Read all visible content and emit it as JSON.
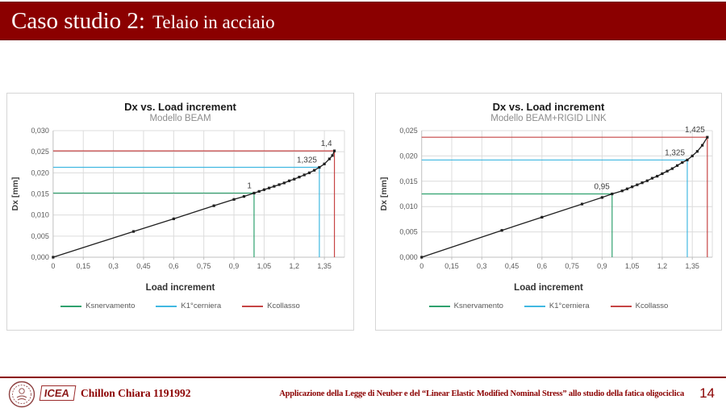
{
  "slide": {
    "title_main": "Caso studio 2:",
    "title_sub": "Telaio in acciaio",
    "accent_color": "#8B0000",
    "footer": {
      "logo_text": "ICEA",
      "author": "Chillon Chiara 1191992",
      "caption": "Applicazione della Legge di Neuber e del “Linear Elastic Modified Nominal Stress” allo studio della fatica oligociclica",
      "page_number": "14"
    }
  },
  "chart_data": [
    {
      "type": "line",
      "title": "Dx vs. Load increment",
      "subtitle": "Modello BEAM",
      "xlabel": "Load increment",
      "ylabel": "Dx [mm]",
      "xlim": [
        0,
        1.45
      ],
      "ylim": [
        0,
        0.03
      ],
      "grid": true,
      "legend_position": "bottom",
      "xticks": [
        {
          "v": 0,
          "label": "0"
        },
        {
          "v": 0.15,
          "label": "0,15"
        },
        {
          "v": 0.3,
          "label": "0,3"
        },
        {
          "v": 0.45,
          "label": "0,45"
        },
        {
          "v": 0.6,
          "label": "0,6"
        },
        {
          "v": 0.75,
          "label": "0,75"
        },
        {
          "v": 0.9,
          "label": "0,9"
        },
        {
          "v": 1.05,
          "label": "1,05"
        },
        {
          "v": 1.2,
          "label": "1,2"
        },
        {
          "v": 1.35,
          "label": "1,35"
        }
      ],
      "yticks": [
        {
          "v": 0,
          "label": "0,000"
        },
        {
          "v": 0.005,
          "label": "0,005"
        },
        {
          "v": 0.01,
          "label": "0,010"
        },
        {
          "v": 0.015,
          "label": "0,015"
        },
        {
          "v": 0.02,
          "label": "0,020"
        },
        {
          "v": 0.025,
          "label": "0,025"
        },
        {
          "v": 0.03,
          "label": "0,030"
        }
      ],
      "series": {
        "name": "Dx",
        "color": "#1f1f1f",
        "points": [
          [
            0,
            0
          ],
          [
            0.4,
            0.0061
          ],
          [
            0.6,
            0.0091
          ],
          [
            0.8,
            0.0122
          ],
          [
            0.9,
            0.0137
          ],
          [
            0.95,
            0.0144
          ],
          [
            1.0,
            0.0152
          ],
          [
            1.025,
            0.0156
          ],
          [
            1.05,
            0.016
          ],
          [
            1.075,
            0.0164
          ],
          [
            1.1,
            0.0168
          ],
          [
            1.125,
            0.0172
          ],
          [
            1.15,
            0.0176
          ],
          [
            1.175,
            0.0181
          ],
          [
            1.2,
            0.0185
          ],
          [
            1.225,
            0.019
          ],
          [
            1.25,
            0.0195
          ],
          [
            1.275,
            0.02
          ],
          [
            1.3,
            0.0206
          ],
          [
            1.325,
            0.0213
          ],
          [
            1.35,
            0.0221
          ],
          [
            1.375,
            0.0233
          ],
          [
            1.39,
            0.0241
          ],
          [
            1.4,
            0.0252
          ]
        ]
      },
      "reference_lines": [
        {
          "name": "Ksnervamento",
          "color": "#2fa16e",
          "x": 1.0,
          "y": 0.0152,
          "annotation": "1"
        },
        {
          "name": "K1°cerniera",
          "color": "#41b8e1",
          "x": 1.325,
          "y": 0.0213,
          "annotation": "1,325"
        },
        {
          "name": "Kcollasso",
          "color": "#c64444",
          "x": 1.4,
          "y": 0.0252,
          "annotation": "1,4"
        }
      ]
    },
    {
      "type": "line",
      "title": "Dx vs. Load increment",
      "subtitle": "Modello BEAM+RIGID LINK",
      "xlabel": "Load increment",
      "ylabel": "Dx [mm]",
      "xlim": [
        0,
        1.45
      ],
      "ylim": [
        0,
        0.025
      ],
      "grid": true,
      "legend_position": "bottom",
      "xticks": [
        {
          "v": 0,
          "label": "0"
        },
        {
          "v": 0.15,
          "label": "0,15"
        },
        {
          "v": 0.3,
          "label": "0,3"
        },
        {
          "v": 0.45,
          "label": "0,45"
        },
        {
          "v": 0.6,
          "label": "0,6"
        },
        {
          "v": 0.75,
          "label": "0,75"
        },
        {
          "v": 0.9,
          "label": "0,9"
        },
        {
          "v": 1.05,
          "label": "1,05"
        },
        {
          "v": 1.2,
          "label": "1,2"
        },
        {
          "v": 1.35,
          "label": "1,35"
        }
      ],
      "yticks": [
        {
          "v": 0,
          "label": "0,000"
        },
        {
          "v": 0.005,
          "label": "0,005"
        },
        {
          "v": 0.01,
          "label": "0,010"
        },
        {
          "v": 0.015,
          "label": "0,015"
        },
        {
          "v": 0.02,
          "label": "0,020"
        },
        {
          "v": 0.025,
          "label": "0,025"
        }
      ],
      "series": {
        "name": "Dx",
        "color": "#1f1f1f",
        "points": [
          [
            0,
            0
          ],
          [
            0.4,
            0.0053
          ],
          [
            0.6,
            0.0079
          ],
          [
            0.8,
            0.0105
          ],
          [
            0.9,
            0.0118
          ],
          [
            0.95,
            0.0125
          ],
          [
            1.0,
            0.0131
          ],
          [
            1.025,
            0.0135
          ],
          [
            1.05,
            0.0139
          ],
          [
            1.075,
            0.0143
          ],
          [
            1.1,
            0.0147
          ],
          [
            1.125,
            0.0151
          ],
          [
            1.15,
            0.0156
          ],
          [
            1.175,
            0.016
          ],
          [
            1.2,
            0.0165
          ],
          [
            1.225,
            0.017
          ],
          [
            1.25,
            0.0175
          ],
          [
            1.275,
            0.0181
          ],
          [
            1.3,
            0.0187
          ],
          [
            1.325,
            0.0192
          ],
          [
            1.35,
            0.02
          ],
          [
            1.375,
            0.0209
          ],
          [
            1.4,
            0.0221
          ],
          [
            1.425,
            0.0237
          ]
        ]
      },
      "reference_lines": [
        {
          "name": "Ksnervamento",
          "color": "#2fa16e",
          "x": 0.95,
          "y": 0.0125,
          "annotation": "0,95"
        },
        {
          "name": "K1°cerniera",
          "color": "#41b8e1",
          "x": 1.325,
          "y": 0.0192,
          "annotation": "1,325"
        },
        {
          "name": "Kcollasso",
          "color": "#c64444",
          "x": 1.425,
          "y": 0.0237,
          "annotation": "1,425"
        }
      ]
    }
  ]
}
